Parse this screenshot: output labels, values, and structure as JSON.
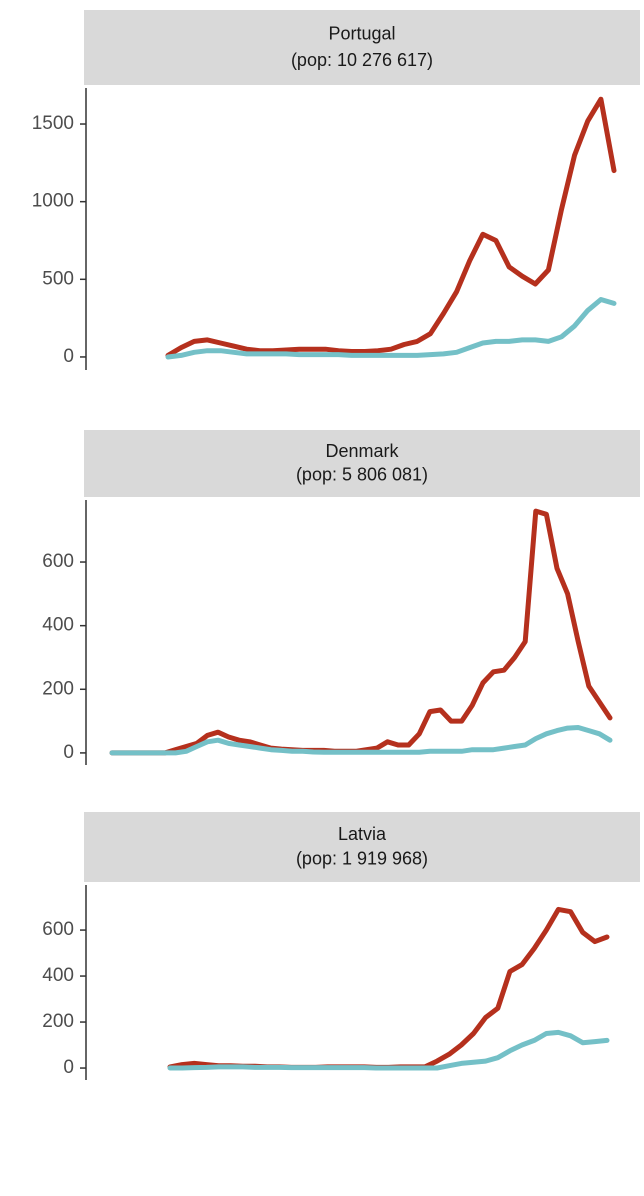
{
  "chart_data": [
    {
      "type": "line",
      "title": "Portugal",
      "subtitle": "(pop: 10 276 617)",
      "categories": [
        null,
        null,
        null,
        null,
        null,
        null,
        null,
        null,
        null,
        null,
        null,
        null,
        null,
        null,
        null,
        null,
        null,
        null,
        null,
        null,
        null,
        null,
        null,
        null,
        null,
        null,
        null,
        null,
        null,
        null,
        null,
        null,
        null,
        null,
        null
      ],
      "series": [
        {
          "color": "#b5301d",
          "values": [
            10,
            60,
            100,
            110,
            90,
            70,
            50,
            40,
            40,
            45,
            50,
            50,
            50,
            40,
            35,
            35,
            40,
            50,
            80,
            100,
            150,
            280,
            420,
            620,
            790,
            750,
            580,
            520,
            470,
            560,
            950,
            1300,
            1520,
            1660,
            1200
          ]
        },
        {
          "color": "#74c0c7",
          "values": [
            0,
            10,
            30,
            40,
            40,
            30,
            20,
            20,
            20,
            20,
            15,
            15,
            15,
            15,
            10,
            10,
            10,
            10,
            10,
            10,
            15,
            20,
            30,
            60,
            90,
            100,
            100,
            110,
            110,
            100,
            130,
            200,
            300,
            370,
            345
          ]
        }
      ],
      "ylim": [
        -84,
        1732
      ],
      "yticks": [
        0,
        500,
        1000,
        1500
      ]
    },
    {
      "type": "line",
      "title": "Denmark",
      "subtitle": "(pop: 5 806 081)",
      "categories": [
        null,
        null,
        null,
        null,
        null,
        null,
        null,
        null,
        null,
        null,
        null,
        null,
        null,
        null,
        null,
        null,
        null,
        null,
        null,
        null,
        null,
        null,
        null,
        null,
        null,
        null,
        null,
        null,
        null,
        null,
        null,
        null,
        null,
        null,
        null,
        null,
        null,
        null,
        null,
        null,
        null,
        null,
        null,
        null,
        null,
        null,
        null,
        null
      ],
      "series": [
        {
          "color": "#b5301d",
          "values": [
            0,
            0,
            0,
            0,
            0,
            0,
            10,
            20,
            30,
            55,
            65,
            50,
            40,
            35,
            25,
            15,
            12,
            10,
            8,
            8,
            8,
            5,
            5,
            5,
            10,
            15,
            35,
            25,
            25,
            60,
            130,
            135,
            100,
            100,
            150,
            220,
            255,
            260,
            300,
            350,
            760,
            750,
            580,
            500,
            350,
            210,
            160,
            110
          ]
        },
        {
          "color": "#74c0c7",
          "values": [
            0,
            0,
            0,
            0,
            0,
            0,
            0,
            5,
            20,
            35,
            40,
            30,
            25,
            20,
            15,
            10,
            8,
            5,
            5,
            3,
            2,
            2,
            2,
            2,
            2,
            2,
            2,
            2,
            2,
            2,
            5,
            5,
            5,
            5,
            10,
            10,
            10,
            15,
            20,
            25,
            45,
            60,
            70,
            78,
            80,
            70,
            60,
            40
          ]
        }
      ],
      "ylim": [
        -38,
        795
      ],
      "yticks": [
        0,
        200,
        400,
        600
      ]
    },
    {
      "type": "line",
      "title": "Latvia",
      "subtitle": "(pop: 1 919 968)",
      "categories": [
        null,
        null,
        null,
        null,
        null,
        null,
        null,
        null,
        null,
        null,
        null,
        null,
        null,
        null,
        null,
        null,
        null,
        null,
        null,
        null,
        null,
        null,
        null,
        null,
        null,
        null,
        null,
        null,
        null,
        null,
        null,
        null,
        null,
        null,
        null,
        null,
        null
      ],
      "series": [
        {
          "color": "#b5301d",
          "values": [
            5,
            15,
            20,
            15,
            10,
            10,
            8,
            8,
            5,
            5,
            3,
            3,
            3,
            5,
            5,
            5,
            5,
            3,
            3,
            5,
            5,
            5,
            30,
            60,
            100,
            150,
            220,
            260,
            420,
            450,
            520,
            600,
            690,
            680,
            590,
            550,
            570
          ]
        },
        {
          "color": "#74c0c7",
          "values": [
            0,
            0,
            2,
            3,
            5,
            5,
            5,
            3,
            3,
            3,
            2,
            2,
            2,
            2,
            2,
            2,
            2,
            0,
            0,
            0,
            0,
            0,
            0,
            10,
            20,
            25,
            30,
            45,
            75,
            100,
            120,
            150,
            155,
            140,
            110,
            115,
            120
          ]
        }
      ],
      "ylim": [
        -52,
        796
      ],
      "yticks": [
        0,
        200,
        400,
        600
      ]
    }
  ]
}
